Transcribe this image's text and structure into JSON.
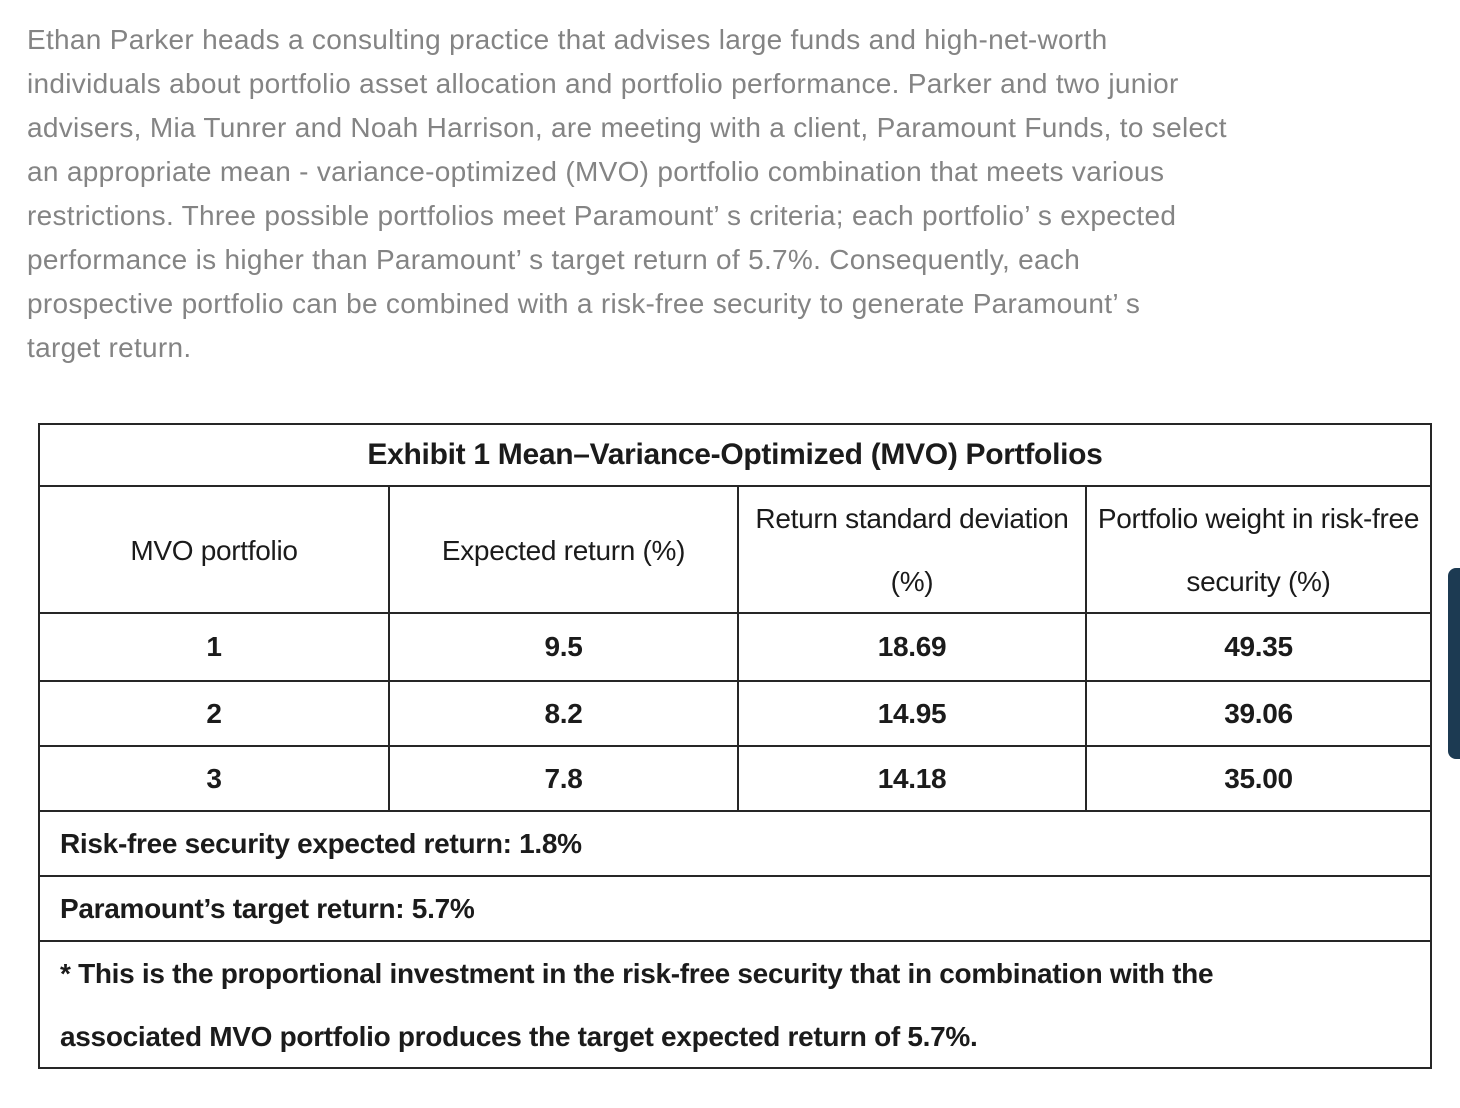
{
  "intro": {
    "lines": [
      "Ethan Parker heads a consulting practice that advises large funds and high-net-worth",
      "individuals about portfolio asset allocation and portfolio performance. Parker and two junior",
      "advisers, Mia Tunrer and Noah Harrison, are meeting with a client, Paramount Funds, to select",
      "an appropriate mean - variance-optimized (MVO) portfolio combination that meets various",
      "restrictions. Three possible portfolios meet Paramount’ s criteria; each portfolio’ s expected",
      "performance is higher than Paramount’ s target return of 5.7%. Consequently, each",
      "prospective portfolio can be combined with a risk-free security to generate Paramount’ s",
      "target return."
    ]
  },
  "exhibit": {
    "title": "Exhibit 1 Mean–Variance-Optimized (MVO) Portfolios",
    "columns": [
      "MVO portfolio",
      "Expected return (%)",
      "Return standard deviation (%)",
      "Portfolio weight in risk-free security (%)"
    ],
    "rows": [
      [
        "1",
        "9.5",
        "18.69",
        "49.35"
      ],
      [
        "2",
        "8.2",
        "14.95",
        "39.06"
      ],
      [
        "3",
        "7.8",
        "14.18",
        "35.00"
      ]
    ],
    "notes": [
      "Risk-free security expected return: 1.8%",
      "Paramount’s target return: 5.7%"
    ],
    "footnote_lines": [
      "* This is the proportional investment in the risk-free security that in combination with the",
      "associated MVO portfolio produces the target expected return of 5.7%."
    ]
  },
  "scrollbar": {
    "color": "#1c3a52"
  },
  "colors": {
    "intro_text": "#848484",
    "table_text": "#1b1b1b",
    "table_border": "#262626",
    "background": "#ffffff"
  }
}
